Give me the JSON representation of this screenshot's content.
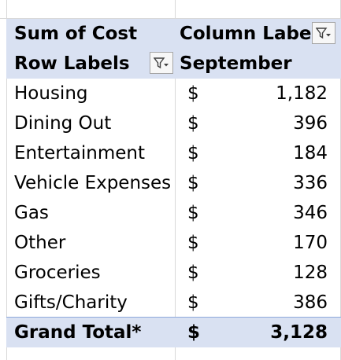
{
  "pivot": {
    "header_row1": {
      "values_label": "Sum of Cost",
      "columns_label": "Column Labels"
    },
    "header_row2": {
      "rows_label": "Row Labels",
      "column_value": "September"
    },
    "rows": [
      {
        "label": "Housing",
        "currency": "$",
        "value": "1,182"
      },
      {
        "label": "Dining Out",
        "currency": "$",
        "value": "396"
      },
      {
        "label": "Entertainment",
        "currency": "$",
        "value": "184"
      },
      {
        "label": "Vehicle Expenses",
        "currency": "$",
        "value": "336"
      },
      {
        "label": "Gas",
        "currency": "$",
        "value": "346"
      },
      {
        "label": "Other",
        "currency": "$",
        "value": "170"
      },
      {
        "label": "Groceries",
        "currency": "$",
        "value": "128"
      },
      {
        "label": "Gifts/Charity",
        "currency": "$",
        "value": "386"
      }
    ],
    "grand_total": {
      "label": "Grand Total*",
      "currency": "$",
      "value": "3,128"
    }
  },
  "icons": {
    "filter": "filter-dropdown-icon"
  },
  "colors": {
    "header_fill": "#d9e1f2",
    "total_border": "#8ea9db",
    "gridline": "#d9d9d9"
  }
}
